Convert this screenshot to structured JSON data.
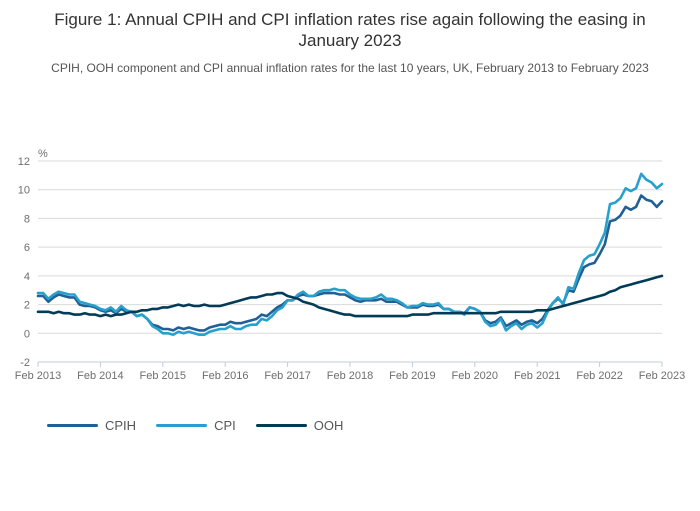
{
  "figure": {
    "title": "Figure 1: Annual CPIH and CPI inflation rates rise again following the easing in January 2023",
    "subtitle": "CPIH, OOH component and CPI annual inflation rates for the last 10 years, UK, February 2013 to February 2023"
  },
  "chart_data": {
    "type": "line",
    "ylabel": "%",
    "ylim": [
      -2,
      12
    ],
    "yticks": [
      -2,
      0,
      2,
      4,
      6,
      8,
      10,
      12
    ],
    "x_start": "Feb 2013",
    "x_end": "Feb 2023",
    "x_frequency": "monthly",
    "xticklabels": [
      "Feb 2013",
      "Feb 2014",
      "Feb 2015",
      "Feb 2016",
      "Feb 2017",
      "Feb 2018",
      "Feb 2019",
      "Feb 2020",
      "Feb 2021",
      "Feb 2022",
      "Feb 2023"
    ],
    "grid": "horizontal",
    "legend_position": "bottom-left",
    "axis_color": "#c0ccd6",
    "gridline_color": "#d9d9d9",
    "tick_label_color": "#6e6e6e",
    "series": [
      {
        "name": "CPIH",
        "color": "#206095",
        "values": [
          2.6,
          2.6,
          2.2,
          2.5,
          2.7,
          2.6,
          2.5,
          2.5,
          2.0,
          1.9,
          1.9,
          1.8,
          1.6,
          1.5,
          1.6,
          1.4,
          1.7,
          1.5,
          1.5,
          1.2,
          1.3,
          1.0,
          0.6,
          0.5,
          0.3,
          0.3,
          0.2,
          0.4,
          0.3,
          0.4,
          0.3,
          0.2,
          0.2,
          0.4,
          0.5,
          0.6,
          0.6,
          0.8,
          0.7,
          0.7,
          0.8,
          0.9,
          1.0,
          1.3,
          1.2,
          1.5,
          1.8,
          2.0,
          2.3,
          2.3,
          2.6,
          2.7,
          2.6,
          2.6,
          2.7,
          2.8,
          2.8,
          2.8,
          2.7,
          2.7,
          2.5,
          2.3,
          2.2,
          2.3,
          2.3,
          2.3,
          2.4,
          2.2,
          2.2,
          2.2,
          2.0,
          1.8,
          1.8,
          1.8,
          2.0,
          1.9,
          1.9,
          2.0,
          1.7,
          1.7,
          1.5,
          1.5,
          1.4,
          1.8,
          1.7,
          1.5,
          0.9,
          0.7,
          0.8,
          1.1,
          0.5,
          0.7,
          0.9,
          0.6,
          0.8,
          0.9,
          0.7,
          1.0,
          1.6,
          2.1,
          2.4,
          2.1,
          3.0,
          2.9,
          3.8,
          4.6,
          4.8,
          4.9,
          5.5,
          6.2,
          7.8,
          7.9,
          8.2,
          8.8,
          8.6,
          8.8,
          9.6,
          9.3,
          9.2,
          8.8,
          9.2
        ]
      },
      {
        "name": "CPI",
        "color": "#27a0cc",
        "values": [
          2.8,
          2.8,
          2.4,
          2.7,
          2.9,
          2.8,
          2.7,
          2.7,
          2.2,
          2.1,
          2.0,
          1.9,
          1.7,
          1.6,
          1.8,
          1.5,
          1.9,
          1.6,
          1.5,
          1.2,
          1.3,
          1.0,
          0.5,
          0.3,
          0.0,
          0.0,
          -0.1,
          0.1,
          0.0,
          0.1,
          0.0,
          -0.1,
          -0.1,
          0.1,
          0.2,
          0.3,
          0.3,
          0.5,
          0.3,
          0.3,
          0.5,
          0.6,
          0.6,
          1.0,
          0.9,
          1.2,
          1.6,
          1.8,
          2.3,
          2.3,
          2.7,
          2.9,
          2.6,
          2.6,
          2.9,
          3.0,
          3.0,
          3.1,
          3.0,
          3.0,
          2.7,
          2.5,
          2.4,
          2.4,
          2.4,
          2.5,
          2.7,
          2.4,
          2.4,
          2.3,
          2.1,
          1.8,
          1.9,
          1.9,
          2.1,
          2.0,
          2.0,
          2.1,
          1.7,
          1.7,
          1.5,
          1.5,
          1.3,
          1.8,
          1.7,
          1.5,
          0.8,
          0.5,
          0.6,
          1.0,
          0.2,
          0.5,
          0.7,
          0.3,
          0.6,
          0.7,
          0.4,
          0.7,
          1.5,
          2.1,
          2.5,
          2.0,
          3.2,
          3.1,
          4.2,
          5.1,
          5.4,
          5.5,
          6.2,
          7.0,
          9.0,
          9.1,
          9.4,
          10.1,
          9.9,
          10.1,
          11.1,
          10.7,
          10.5,
          10.1,
          10.4
        ]
      },
      {
        "name": "OOH",
        "color": "#003c57",
        "values": [
          1.5,
          1.5,
          1.5,
          1.4,
          1.5,
          1.4,
          1.4,
          1.3,
          1.3,
          1.4,
          1.3,
          1.3,
          1.2,
          1.3,
          1.2,
          1.3,
          1.3,
          1.4,
          1.5,
          1.5,
          1.6,
          1.6,
          1.7,
          1.7,
          1.8,
          1.8,
          1.9,
          2.0,
          1.9,
          2.0,
          1.9,
          1.9,
          2.0,
          1.9,
          1.9,
          1.9,
          2.0,
          2.1,
          2.2,
          2.3,
          2.4,
          2.5,
          2.5,
          2.6,
          2.7,
          2.7,
          2.8,
          2.8,
          2.6,
          2.5,
          2.4,
          2.2,
          2.1,
          2.0,
          1.8,
          1.7,
          1.6,
          1.5,
          1.4,
          1.3,
          1.3,
          1.2,
          1.2,
          1.2,
          1.2,
          1.2,
          1.2,
          1.2,
          1.2,
          1.2,
          1.2,
          1.2,
          1.3,
          1.3,
          1.3,
          1.3,
          1.4,
          1.4,
          1.4,
          1.4,
          1.4,
          1.4,
          1.4,
          1.4,
          1.4,
          1.4,
          1.4,
          1.4,
          1.4,
          1.5,
          1.5,
          1.5,
          1.5,
          1.5,
          1.5,
          1.5,
          1.6,
          1.6,
          1.6,
          1.7,
          1.8,
          1.9,
          2.0,
          2.1,
          2.2,
          2.3,
          2.4,
          2.5,
          2.6,
          2.7,
          2.9,
          3.0,
          3.2,
          3.3,
          3.4,
          3.5,
          3.6,
          3.7,
          3.8,
          3.9,
          4.0
        ]
      }
    ]
  }
}
